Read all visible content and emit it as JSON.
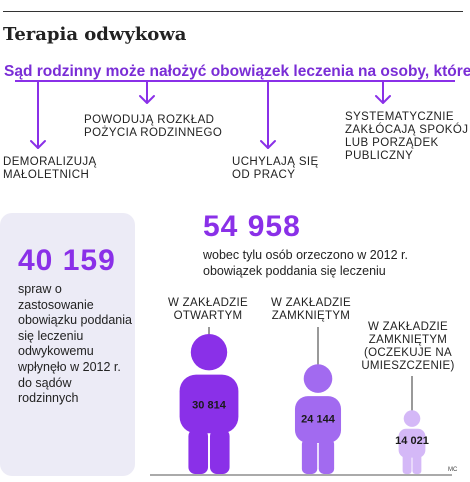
{
  "title": "Terapia odwykowa",
  "lead": "Sąd rodzinny może nałożyć obowiązek leczenia na osoby, które:",
  "conditions": [
    "DEMORALIZUJĄ MAŁOLETNICH",
    "POWODUJĄ ROZKŁAD POŻYCIA RODZINNEGO",
    "UCHYLAJĄ SIĘ OD PRACY",
    "SYSTEMATYCZNIE ZAKŁÓCAJĄ SPOKÓJ LUB PORZĄDEK PUBLICZNY"
  ],
  "applications": {
    "number": "40 159",
    "text": "spraw o zastosowanie obowiązku poddania się leczeniu odwykowemu wpłynęło w 2012 r. do sądów rodzinnych"
  },
  "ordered": {
    "number": "54 958",
    "text": "wobec tylu osób orzeczono w 2012 r. obowiązek poddania się leczeniu"
  },
  "chart_data": {
    "type": "bar",
    "categories": [
      "W ZAKŁADZIE OTWARTYM",
      "W ZAKŁADZIE ZAMKNIĘTYM",
      "W ZAKŁADZIE ZAMKNIĘTYM (OCZEKUJE NA UMIESZCZENIE)"
    ],
    "values": [
      30814,
      24144,
      14021
    ],
    "value_labels": [
      "30 814",
      "24 144",
      "14 021"
    ],
    "colors": [
      "#8a30e8",
      "#a26af0",
      "#d4b8f7"
    ]
  },
  "colors": {
    "accent": "#7a2dd6",
    "panel": "#ecebf6"
  },
  "credit": "MC"
}
